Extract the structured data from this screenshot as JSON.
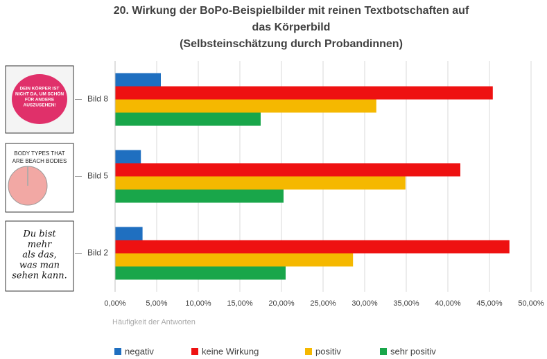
{
  "chart_data": {
    "type": "barh",
    "title_lines": [
      "20. Wirkung der BoPo-Beispielbilder mit reinen Textbotschaften auf",
      "das Körperbild",
      "(Selbsteinschätzung durch Probandinnen)"
    ],
    "x_label": "Häufigkeit der Antworten",
    "categories": [
      "Bild 8",
      "Bild 5",
      "Bild 2"
    ],
    "series": [
      {
        "name": "negativ",
        "color": "#1f6fc0",
        "values": [
          5.5,
          3.1,
          3.3
        ]
      },
      {
        "name": "keine Wirkung",
        "color": "#ee1111",
        "values": [
          45.4,
          41.5,
          47.4
        ]
      },
      {
        "name": "positiv",
        "color": "#f5b800",
        "values": [
          31.4,
          34.9,
          28.6
        ]
      },
      {
        "name": "sehr positiv",
        "color": "#19a64a",
        "values": [
          17.5,
          20.25,
          20.5
        ]
      }
    ],
    "xlim": [
      0,
      50
    ],
    "xticks": [
      {
        "value": 0,
        "label": "0,00%"
      },
      {
        "value": 5,
        "label": "5,00%"
      },
      {
        "value": 10,
        "label": "10,00%"
      },
      {
        "value": 15,
        "label": "15,00%"
      },
      {
        "value": 20,
        "label": "20,00%"
      },
      {
        "value": 25,
        "label": "25,00%"
      },
      {
        "value": 30,
        "label": "30,00%"
      },
      {
        "value": 35,
        "label": "35,00%"
      },
      {
        "value": 40,
        "label": "40,00%"
      },
      {
        "value": 45,
        "label": "45,00%"
      },
      {
        "value": 50,
        "label": "50,00%"
      }
    ],
    "grid": true,
    "legend": "bottom",
    "thumbnail_texts": [
      [
        "DEIN KÖRPER IST",
        "NICHT DA, UM SCHÖN",
        "FÜR ANDERE",
        "AUSZUSEHEN!"
      ],
      [
        "BODY TYPES THAT",
        "ARE BEACH BODIES"
      ],
      [
        "Du bist",
        "mehr",
        "als das,",
        "was man",
        "sehen kann."
      ]
    ]
  }
}
